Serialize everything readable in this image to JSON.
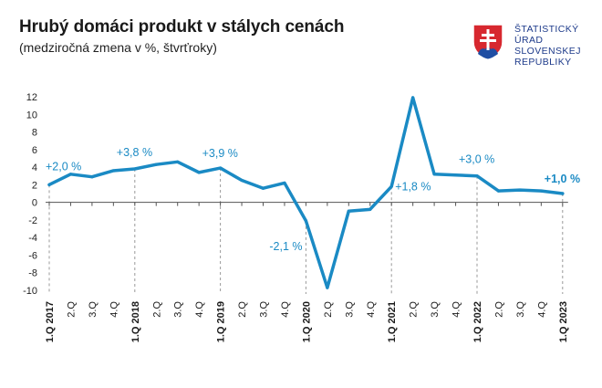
{
  "header": {
    "title": "Hrubý domáci produkt v stálych cenách",
    "subtitle": "(medziročná zmena v %, štvrťroky)"
  },
  "logo": {
    "lines": [
      "ŠTATISTICKÝ",
      "ÚRAD",
      "SLOVENSKEJ",
      "REPUBLIKY"
    ],
    "text_color": "#1d3a8a",
    "shield_red": "#d7282f",
    "shield_blue": "#1f4ea3"
  },
  "chart_data": {
    "type": "line",
    "title": "Hrubý domáci produkt v stálych cenách",
    "subtitle": "(medziročná zmena v %, štvrťroky)",
    "ylim": [
      -10,
      12
    ],
    "yticks": [
      -10,
      -8,
      -6,
      -4,
      -2,
      0,
      2,
      4,
      6,
      8,
      10,
      12
    ],
    "grid": false,
    "line_color": "#1a8ac4",
    "categories": [
      "1.Q 2017",
      "2.Q",
      "3.Q",
      "4.Q",
      "1.Q 2018",
      "2.Q",
      "3.Q",
      "4.Q",
      "1.Q 2019",
      "2.Q",
      "3.Q",
      "4.Q",
      "1.Q 2020",
      "2.Q",
      "3.Q",
      "4.Q",
      "1.Q 2021",
      "2.Q",
      "3.Q",
      "4.Q",
      "1.Q 2022",
      "2.Q",
      "3.Q",
      "4.Q",
      "1.Q 2023"
    ],
    "bold_categories": [
      0,
      4,
      8,
      12,
      16,
      20,
      24
    ],
    "values": [
      2.0,
      3.2,
      2.9,
      3.6,
      3.8,
      4.3,
      4.6,
      3.4,
      3.9,
      2.5,
      1.6,
      2.2,
      -2.1,
      -9.7,
      -1.0,
      -0.8,
      1.8,
      11.9,
      3.2,
      3.1,
      3.0,
      1.3,
      1.4,
      1.3,
      1.0
    ],
    "annotations": [
      {
        "index": 0,
        "label": "+2,0 %",
        "bold": false
      },
      {
        "index": 4,
        "label": "+3,8 %",
        "bold": false
      },
      {
        "index": 8,
        "label": "+3,9 %",
        "bold": false
      },
      {
        "index": 12,
        "label": "-2,1 %",
        "bold": false
      },
      {
        "index": 16,
        "label": "+1,8 %",
        "bold": false
      },
      {
        "index": 20,
        "label": "+3,0 %",
        "bold": false
      },
      {
        "index": 24,
        "label": "+1,0 %",
        "bold": true
      }
    ]
  }
}
